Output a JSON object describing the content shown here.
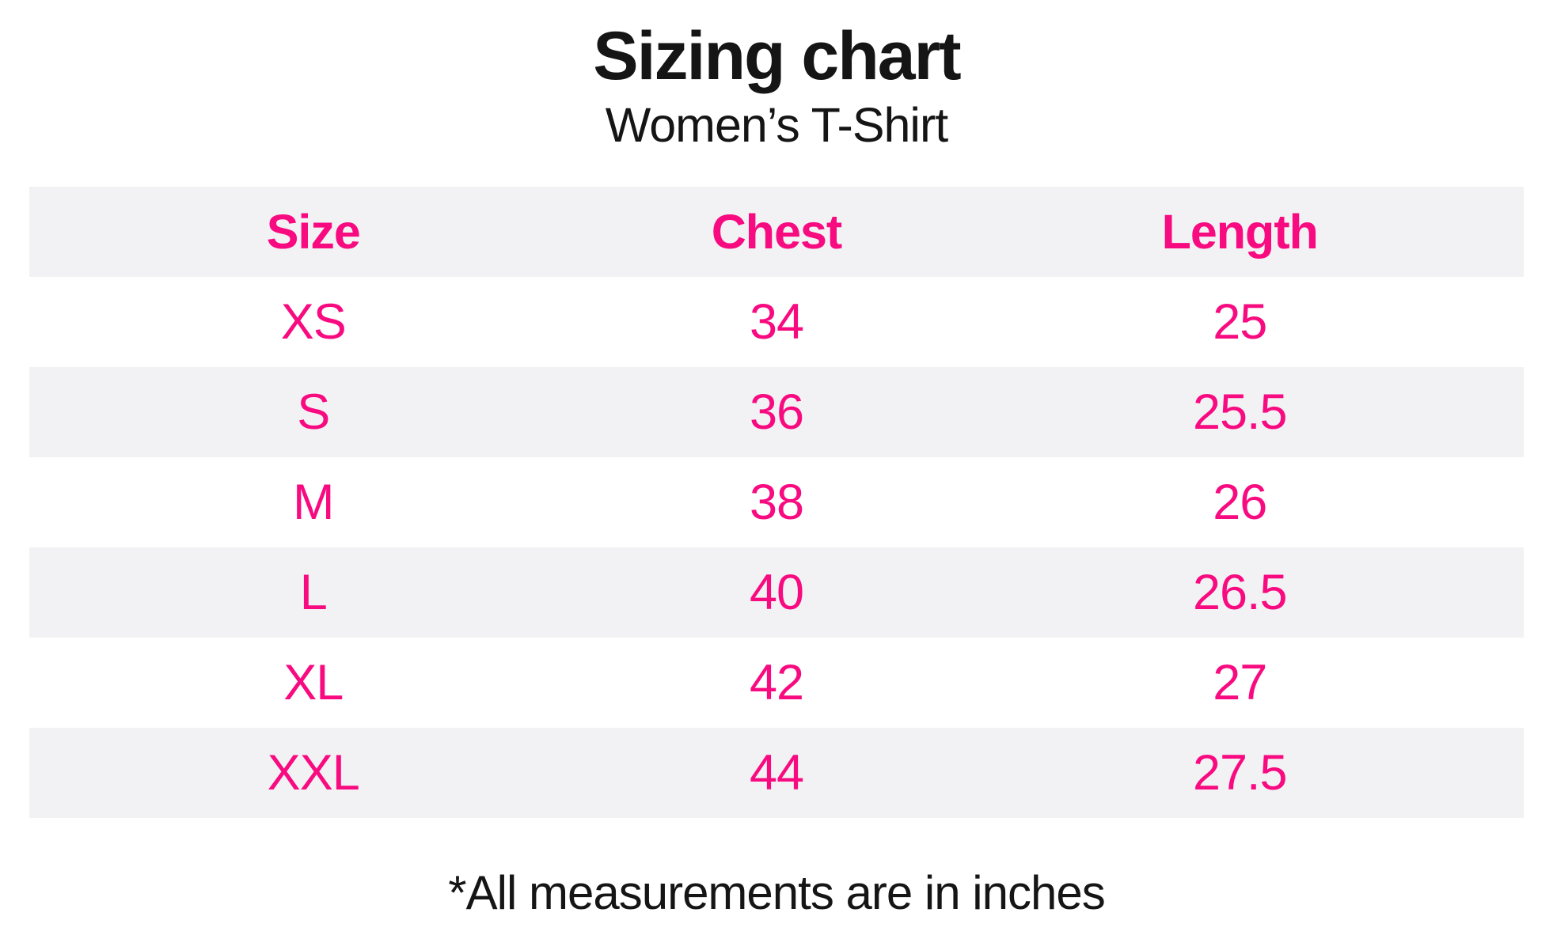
{
  "page": {
    "title": "Sizing chart",
    "subtitle": "Women’s T-Shirt",
    "footnote": "*All measurements are in inches"
  },
  "table": {
    "headers": {
      "size": "Size",
      "chest": "Chest",
      "length": "Length"
    },
    "rows": [
      {
        "size": "XS",
        "chest": "34",
        "length": "25"
      },
      {
        "size": "S",
        "chest": "36",
        "length": "25.5"
      },
      {
        "size": "M",
        "chest": "38",
        "length": "26"
      },
      {
        "size": "L",
        "chest": "40",
        "length": "26.5"
      },
      {
        "size": "XL",
        "chest": "42",
        "length": "27"
      },
      {
        "size": "XXL",
        "chest": "44",
        "length": "27.5"
      }
    ]
  },
  "colors": {
    "accent_pink": "#F80B80",
    "row_stripe": "#F2F2F4",
    "text": "#151515",
    "background": "#FFFFFF"
  },
  "chart_data": {
    "type": "table",
    "title": "Sizing chart",
    "subtitle": "Women’s T-Shirt",
    "columns": [
      "Size",
      "Chest",
      "Length"
    ],
    "rows": [
      [
        "XS",
        34,
        25
      ],
      [
        "S",
        36,
        25.5
      ],
      [
        "M",
        38,
        26
      ],
      [
        "L",
        40,
        26.5
      ],
      [
        "XL",
        42,
        27
      ],
      [
        "XXL",
        44,
        27.5
      ]
    ],
    "footnote": "*All measurements are in inches",
    "units": "inches",
    "layout": {
      "header_background": "#F2F2F4",
      "zebra_striping": true,
      "striped_rows": [
        "S",
        "L",
        "XXL"
      ],
      "value_color": "#F80B80",
      "text_color": "#151515"
    }
  }
}
